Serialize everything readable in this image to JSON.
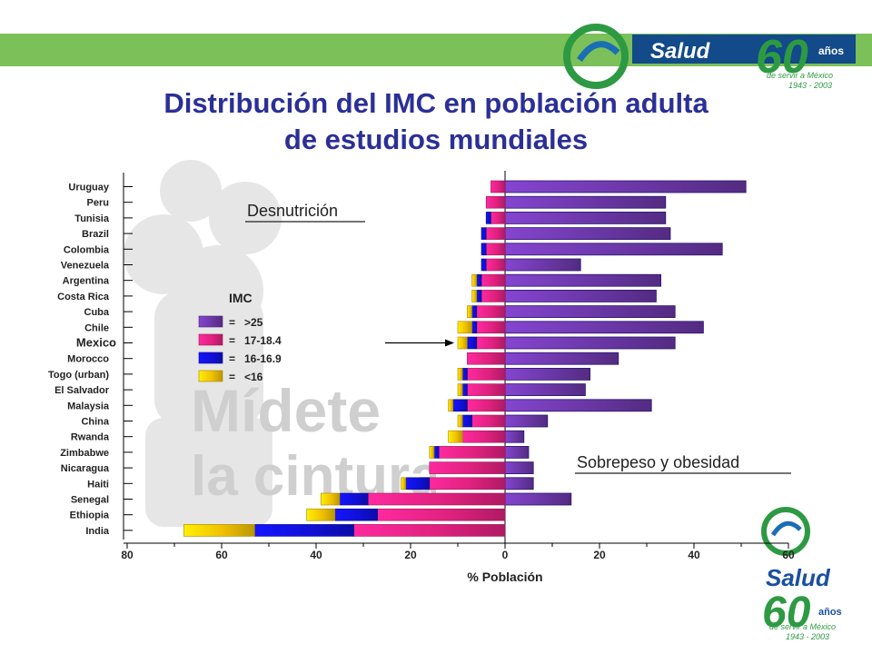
{
  "page": {
    "title_line1": "Distribución del IMC en población adulta",
    "title_line2": "de estudios mundiales",
    "watermark_line1": "Mídete",
    "watermark_line2": "la cintura",
    "colors": {
      "top_bar": "#7cc05a",
      "title": "#2b2f97",
      "watermark": "#d0d0d0"
    }
  },
  "logo": {
    "brand": "Salud",
    "years_word": "años",
    "tagline": "de servir a México",
    "years_range": "1943 - 2003",
    "number": "60"
  },
  "annotations": {
    "left": "Desnutrición",
    "right": "Sobrepeso y obesidad",
    "arrow_target": "Mexico"
  },
  "chart_data": {
    "type": "bar",
    "orientation": "horizontal-diverging",
    "xlabel": "% Población",
    "xlim": [
      -80,
      60
    ],
    "xticks": [
      -80,
      -60,
      -40,
      -20,
      0,
      20,
      40,
      60
    ],
    "xtick_labels": [
      "80",
      "60",
      "40",
      "20",
      "0",
      "20",
      "40",
      "60"
    ],
    "legend": {
      "title": "IMC",
      "position": "center-left",
      "entries": [
        {
          "key": "over25",
          "label": ">25",
          "prefix": "=",
          "color": "#6a37a6"
        },
        {
          "key": "b17_18",
          "label": "17-18.4",
          "prefix": "=",
          "color": "#e0217f"
        },
        {
          "key": "b16_17",
          "label": "16-16.9",
          "prefix": "=",
          "color": "#1010d8"
        },
        {
          "key": "under16",
          "label": "<16",
          "prefix": "=",
          "color": "#efc000"
        }
      ]
    },
    "categories": [
      "Uruguay",
      "Peru",
      "Tunisia",
      "Brazil",
      "Colombia",
      "Venezuela",
      "Argentina",
      "Costa Rica",
      "Cuba",
      "Chile",
      "Mexico",
      "Morocco",
      "Togo (urban)",
      "El Salvador",
      "Malaysia",
      "China",
      "Rwanda",
      "Zimbabwe",
      "Nicaragua",
      "Haiti",
      "Senegal",
      "Ethiopia",
      "India"
    ],
    "highlight_category": "Mexico",
    "series": [
      {
        "name": ">25",
        "side": "right",
        "values": [
          51,
          34,
          34,
          35,
          46,
          16,
          33,
          32,
          36,
          42,
          36,
          24,
          18,
          17,
          31,
          9,
          4,
          5,
          6,
          6,
          14,
          0,
          0
        ]
      },
      {
        "name": "17-18.4",
        "side": "left",
        "values": [
          3,
          4,
          3,
          4,
          4,
          4,
          5,
          5,
          6,
          6,
          6,
          8,
          8,
          8,
          8,
          7,
          9,
          14,
          16,
          16,
          29,
          27,
          32
        ]
      },
      {
        "name": "16-16.9",
        "side": "left",
        "values": [
          0,
          0,
          1,
          1,
          1,
          1,
          1,
          1,
          1,
          1,
          2,
          0,
          1,
          1,
          3,
          2,
          0,
          1,
          0,
          5,
          6,
          9,
          21
        ]
      },
      {
        "name": "<16",
        "side": "left",
        "values": [
          0,
          0,
          0,
          0,
          0,
          0,
          1,
          1,
          1,
          3,
          2,
          0,
          1,
          1,
          1,
          1,
          3,
          1,
          0,
          1,
          4,
          6,
          15
        ]
      }
    ]
  }
}
